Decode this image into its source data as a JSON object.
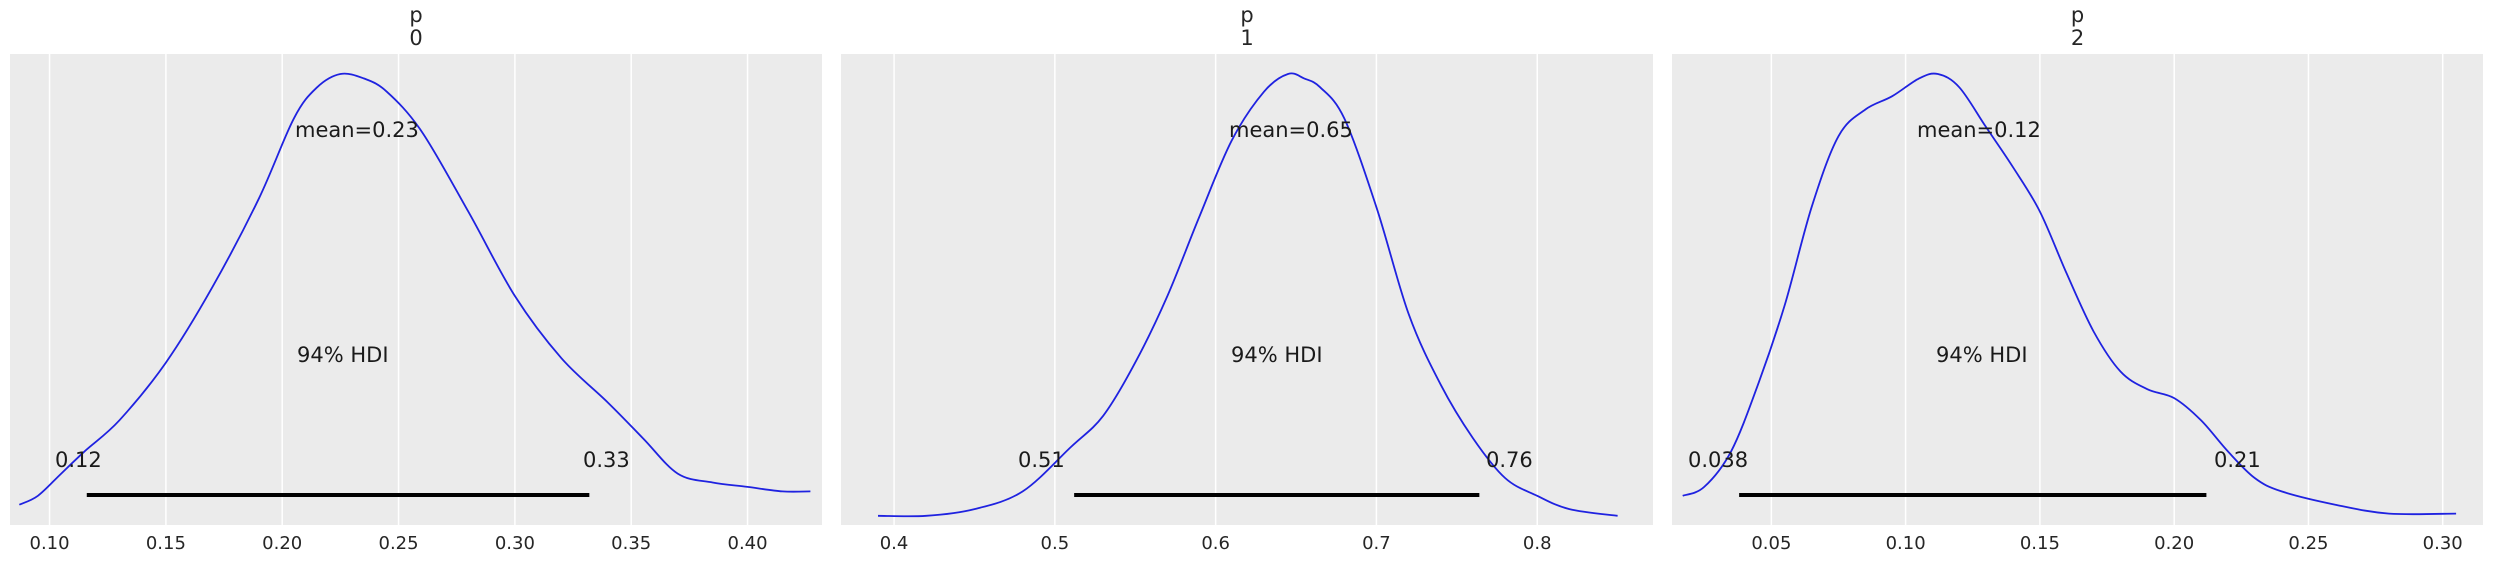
{
  "chart_data": [
    {
      "type": "line",
      "title_line1": "p",
      "title_line2": "0",
      "xlim": [
        0.083,
        0.432
      ],
      "x_ticks": [
        "0.10",
        "0.15",
        "0.20",
        "0.25",
        "0.30",
        "0.35",
        "0.40"
      ],
      "x_tick_values": [
        0.1,
        0.15,
        0.2,
        0.25,
        0.3,
        0.35,
        0.4
      ],
      "density_x": [
        0.087,
        0.095,
        0.105,
        0.115,
        0.13,
        0.15,
        0.17,
        0.19,
        0.205,
        0.215,
        0.225,
        0.235,
        0.245,
        0.26,
        0.28,
        0.3,
        0.32,
        0.34,
        0.355,
        0.37,
        0.385,
        0.4,
        0.415,
        0.427
      ],
      "density_y": [
        0.03,
        0.05,
        0.1,
        0.15,
        0.22,
        0.35,
        0.52,
        0.72,
        0.9,
        0.97,
        1.0,
        0.99,
        0.96,
        0.87,
        0.69,
        0.5,
        0.36,
        0.26,
        0.18,
        0.1,
        0.08,
        0.07,
        0.06,
        0.06
      ],
      "mean_label": "mean=0.23",
      "hdi_label": "94% HDI",
      "hdi": [
        0.116,
        0.332
      ],
      "hdi_low_label": "0.12",
      "hdi_high_label": "0.33"
    },
    {
      "type": "line",
      "title_line1": "p",
      "title_line2": "1",
      "xlim": [
        0.367,
        0.872
      ],
      "x_ticks": [
        "0.4",
        "0.5",
        "0.6",
        "0.7",
        "0.8"
      ],
      "x_tick_values": [
        0.4,
        0.5,
        0.6,
        0.7,
        0.8
      ],
      "density_x": [
        0.39,
        0.42,
        0.45,
        0.48,
        0.51,
        0.53,
        0.55,
        0.57,
        0.59,
        0.61,
        0.63,
        0.645,
        0.655,
        0.665,
        0.68,
        0.7,
        0.72,
        0.74,
        0.76,
        0.78,
        0.8,
        0.82,
        0.85
      ],
      "density_y": [
        0.005,
        0.005,
        0.02,
        0.06,
        0.16,
        0.23,
        0.35,
        0.5,
        0.68,
        0.85,
        0.96,
        1.0,
        0.99,
        0.97,
        0.9,
        0.7,
        0.46,
        0.3,
        0.18,
        0.09,
        0.05,
        0.02,
        0.005
      ],
      "mean_label": "mean=0.65",
      "hdi_label": "94% HDI",
      "hdi": [
        0.512,
        0.764
      ],
      "hdi_low_label": "0.51",
      "hdi_high_label": "0.76"
    },
    {
      "type": "line",
      "title_line1": "p",
      "title_line2": "2",
      "xlim": [
        0.013,
        0.315
      ],
      "x_ticks": [
        "0.05",
        "0.10",
        "0.15",
        "0.20",
        "0.25",
        "0.30"
      ],
      "x_tick_values": [
        0.05,
        0.1,
        0.15,
        0.2,
        0.25,
        0.3
      ],
      "density_x": [
        0.017,
        0.025,
        0.035,
        0.045,
        0.055,
        0.065,
        0.075,
        0.085,
        0.095,
        0.105,
        0.112,
        0.12,
        0.13,
        0.14,
        0.15,
        0.16,
        0.17,
        0.18,
        0.19,
        0.2,
        0.21,
        0.22,
        0.23,
        0.24,
        0.26,
        0.28,
        0.305
      ],
      "density_y": [
        0.05,
        0.07,
        0.15,
        0.3,
        0.48,
        0.7,
        0.86,
        0.92,
        0.95,
        0.99,
        1.0,
        0.97,
        0.88,
        0.79,
        0.69,
        0.55,
        0.42,
        0.33,
        0.29,
        0.27,
        0.22,
        0.15,
        0.09,
        0.06,
        0.03,
        0.01,
        0.01
      ],
      "mean_label": "mean=0.12",
      "hdi_label": "94% HDI",
      "hdi": [
        0.038,
        0.212
      ],
      "hdi_low_label": "0.038",
      "hdi_high_label": "0.21"
    }
  ]
}
